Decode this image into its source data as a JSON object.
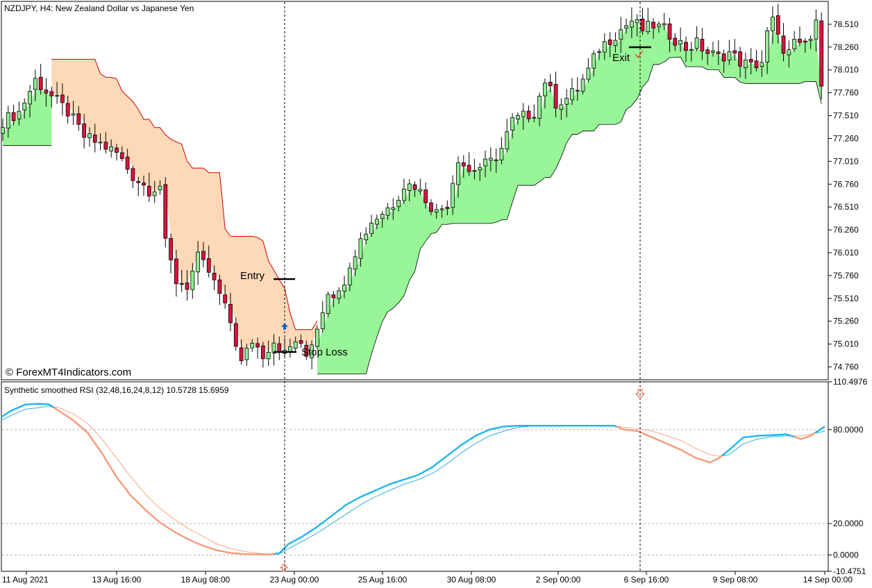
{
  "header": {
    "symbol_line": "NZDJPY, H4:  New Zealand Dollar vs Japanese Yen",
    "watermark": "© ForexMT4Indicators.com",
    "indicator_line": "Synthetic smoothed RSI (32,48,16,24,8,12) 10.5728 15.6959"
  },
  "annotations": {
    "entry": "Entry",
    "stop_loss": "Stop Loss",
    "exit": "Exit"
  },
  "colors": {
    "bull_candle": "#90ee90",
    "bear_candle": "#dc143c",
    "band_bull": "#98f598",
    "band_bear": "#fdd9b8",
    "band_bear_edge": "#cc0000",
    "rsi_fast": "#1eb4f0",
    "rsi_slow": "#f59a7a",
    "arrow_buy": "#1e64c8",
    "arrow_sell": "#e8553a"
  },
  "chart_data": [
    {
      "type": "candlestick",
      "panel": "price",
      "yticks": [
        "78.510",
        "78.260",
        "78.010",
        "77.760",
        "77.510",
        "77.260",
        "77.010",
        "76.760",
        "76.510",
        "76.260",
        "76.010",
        "75.760",
        "75.510",
        "75.260",
        "75.010",
        "74.760"
      ],
      "ylim": [
        74.62,
        78.76
      ],
      "x_ticks": [
        "11 Aug 2021",
        "13 Aug 16:00",
        "18 Aug 08:00",
        "23 Aug 00:00",
        "25 Aug 16:00",
        "30 Aug 08:00",
        "2 Sep 00:00",
        "6 Sep 16:00",
        "9 Sep 08:00",
        "14 Sep 00:00"
      ],
      "close_path": [
        [
          0,
          77.45
        ],
        [
          3,
          77.55
        ],
        [
          6,
          77.9
        ],
        [
          9,
          77.72
        ],
        [
          12,
          77.55
        ],
        [
          15,
          77.28
        ],
        [
          18,
          77.2
        ],
        [
          21,
          77.1
        ],
        [
          24,
          76.85
        ],
        [
          27,
          76.7
        ],
        [
          29,
          76.75
        ],
        [
          30,
          76.1
        ],
        [
          32,
          75.7
        ],
        [
          34,
          75.65
        ],
        [
          36,
          75.95
        ],
        [
          38,
          75.8
        ],
        [
          40,
          75.55
        ],
        [
          42,
          75.25
        ],
        [
          44,
          74.8
        ],
        [
          46,
          75.05
        ],
        [
          48,
          74.9
        ],
        [
          50,
          75.05
        ],
        [
          52,
          74.9
        ],
        [
          54,
          75.05
        ],
        [
          56,
          74.88
        ],
        [
          58,
          75.2
        ],
        [
          60,
          75.6
        ],
        [
          62,
          75.55
        ],
        [
          64,
          75.9
        ],
        [
          66,
          76.15
        ],
        [
          68,
          76.35
        ],
        [
          70,
          76.45
        ],
        [
          72,
          76.55
        ],
        [
          74,
          76.75
        ],
        [
          76,
          76.75
        ],
        [
          78,
          76.6
        ],
        [
          80,
          76.45
        ],
        [
          82,
          76.55
        ],
        [
          84,
          77.05
        ],
        [
          86,
          76.9
        ],
        [
          88,
          76.95
        ],
        [
          90,
          77.0
        ],
        [
          92,
          77.15
        ],
        [
          94,
          77.45
        ],
        [
          96,
          77.5
        ],
        [
          98,
          77.55
        ],
        [
          100,
          77.9
        ],
        [
          102,
          77.65
        ],
        [
          104,
          77.7
        ],
        [
          106,
          77.8
        ],
        [
          108,
          78.0
        ],
        [
          110,
          78.25
        ],
        [
          112,
          78.35
        ],
        [
          114,
          78.45
        ],
        [
          116,
          78.55
        ],
        [
          118,
          78.45
        ],
        [
          120,
          78.5
        ],
        [
          122,
          78.45
        ],
        [
          124,
          78.35
        ],
        [
          126,
          78.25
        ],
        [
          128,
          78.3
        ],
        [
          130,
          78.2
        ],
        [
          132,
          78.15
        ],
        [
          134,
          78.2
        ],
        [
          136,
          78.1
        ],
        [
          138,
          78.05
        ],
        [
          140,
          78.1
        ],
        [
          141,
          78.4
        ],
        [
          142,
          78.55
        ],
        [
          143,
          78.35
        ],
        [
          144,
          78.25
        ],
        [
          145,
          78.2
        ],
        [
          146,
          78.3
        ],
        [
          147,
          78.25
        ],
        [
          148,
          78.3
        ],
        [
          149,
          78.35
        ],
        [
          150,
          78.5
        ],
        [
          151,
          77.9
        ]
      ],
      "candle_count": 152
    },
    {
      "type": "line",
      "panel": "indicator",
      "yticks": [
        "110.4976",
        "80.0000",
        "20.0000",
        "0.0000",
        "-10.4751"
      ],
      "ylim": [
        -10.4751,
        110.4976
      ],
      "levels": [
        80,
        20,
        0
      ],
      "series": [
        {
          "key": "fast",
          "values": [
            [
              0,
              88
            ],
            [
              2,
              92
            ],
            [
              5,
              96
            ],
            [
              8,
              96.5
            ],
            [
              10,
              96
            ],
            [
              12,
              92
            ],
            [
              15,
              86
            ],
            [
              18,
              78
            ],
            [
              21,
              65
            ],
            [
              24,
              50
            ],
            [
              27,
              38
            ],
            [
              30,
              29
            ],
            [
              33,
              21
            ],
            [
              36,
              15
            ],
            [
              39,
              10
            ],
            [
              42,
              6
            ],
            [
              45,
              3
            ],
            [
              48,
              1.2
            ],
            [
              51,
              0.5
            ],
            [
              54,
              0.3
            ],
            [
              56,
              0.3
            ],
            [
              58,
              1
            ],
            [
              60,
              7
            ],
            [
              63,
              12
            ],
            [
              66,
              18
            ],
            [
              69,
              25
            ],
            [
              72,
              32
            ],
            [
              75,
              37
            ],
            [
              78,
              41
            ],
            [
              81,
              45
            ],
            [
              84,
              48
            ],
            [
              87,
              51
            ],
            [
              90,
              56
            ],
            [
              93,
              63
            ],
            [
              96,
              70
            ],
            [
              99,
              76
            ],
            [
              102,
              80
            ],
            [
              105,
              82
            ],
            [
              108,
              82.5
            ],
            [
              111,
              82.5
            ],
            [
              114,
              82.5
            ],
            [
              117,
              82.5
            ],
            [
              120,
              82.5
            ],
            [
              123,
              82.5
            ],
            [
              126,
              82.5
            ],
            [
              128,
              82.5
            ],
            [
              130,
              80
            ],
            [
              133,
              79
            ],
            [
              136,
              75
            ],
            [
              139,
              71
            ],
            [
              142,
              67
            ],
            [
              145,
              62
            ],
            [
              148,
              59
            ],
            [
              150,
              62
            ],
            [
              152,
              67
            ],
            [
              155,
              75
            ],
            [
              158,
              76
            ],
            [
              161,
              76.5
            ],
            [
              164,
              77
            ],
            [
              167,
              74
            ],
            [
              169,
              76
            ],
            [
              172,
              82
            ]
          ]
        },
        {
          "key": "slow",
          "values": [
            [
              0,
              86
            ],
            [
              2,
              89
            ],
            [
              5,
              93
            ],
            [
              8,
              94
            ],
            [
              10,
              95
            ],
            [
              12,
              94
            ],
            [
              15,
              90
            ],
            [
              18,
              84
            ],
            [
              21,
              74
            ],
            [
              24,
              62
            ],
            [
              27,
              50
            ],
            [
              30,
              39
            ],
            [
              33,
              30
            ],
            [
              36,
              23
            ],
            [
              39,
              17
            ],
            [
              42,
              12
            ],
            [
              45,
              7
            ],
            [
              48,
              4
            ],
            [
              51,
              2
            ],
            [
              54,
              1
            ],
            [
              56,
              0.5
            ],
            [
              58,
              0.6
            ],
            [
              60,
              4
            ],
            [
              63,
              9
            ],
            [
              66,
              14
            ],
            [
              69,
              20
            ],
            [
              72,
              26
            ],
            [
              75,
              32
            ],
            [
              78,
              37
            ],
            [
              81,
              41
            ],
            [
              84,
              45
            ],
            [
              87,
              48
            ],
            [
              90,
              52
            ],
            [
              93,
              58
            ],
            [
              96,
              65
            ],
            [
              99,
              71
            ],
            [
              102,
              76
            ],
            [
              105,
              79
            ],
            [
              108,
              81.5
            ],
            [
              111,
              82.3
            ],
            [
              114,
              82.5
            ],
            [
              117,
              82.5
            ],
            [
              120,
              82.5
            ],
            [
              123,
              82.5
            ],
            [
              126,
              82.5
            ],
            [
              128,
              82.5
            ],
            [
              130,
              81.5
            ],
            [
              133,
              80.5
            ],
            [
              136,
              79
            ],
            [
              139,
              76
            ],
            [
              142,
              73
            ],
            [
              145,
              68
            ],
            [
              148,
              64
            ],
            [
              150,
              63
            ],
            [
              152,
              64
            ],
            [
              155,
              71
            ],
            [
              158,
              74
            ],
            [
              161,
              75.5
            ],
            [
              164,
              76
            ],
            [
              167,
              76
            ],
            [
              169,
              77
            ],
            [
              172,
              79
            ]
          ]
        }
      ]
    }
  ]
}
